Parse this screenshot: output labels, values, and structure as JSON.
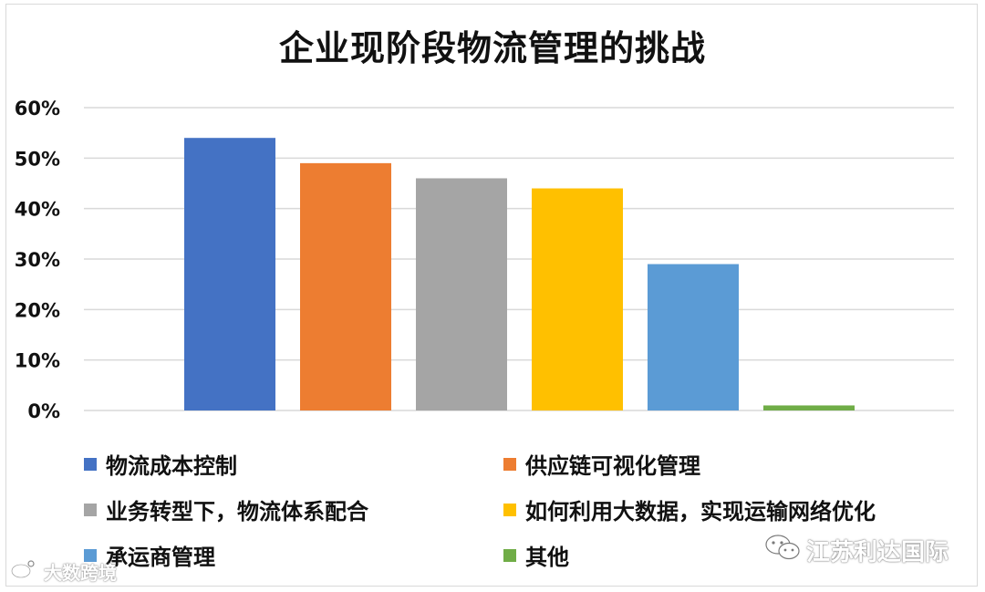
{
  "chart_data": {
    "type": "bar",
    "title": "企业现阶段物流管理的挑战",
    "categories": [
      "物流成本控制",
      "供应链可视化管理",
      "业务转型下，物流体系配合",
      "如何利用大数据，实现运输网络优化",
      "承运商管理",
      "其他"
    ],
    "values": [
      0.54,
      0.49,
      0.46,
      0.44,
      0.29,
      0.01
    ],
    "colors": [
      "#4472C4",
      "#ED7D31",
      "#A5A5A5",
      "#FFC000",
      "#5B9BD5",
      "#70AD47"
    ],
    "ylim": [
      0,
      0.6
    ],
    "yticks": [
      "0%",
      "10%",
      "20%",
      "30%",
      "40%",
      "50%",
      "60%"
    ],
    "grid": true,
    "legend": "bottom",
    "xlabel": "",
    "ylabel": ""
  },
  "watermarks": {
    "left": "大数跨境",
    "right": "江苏利达国际"
  }
}
